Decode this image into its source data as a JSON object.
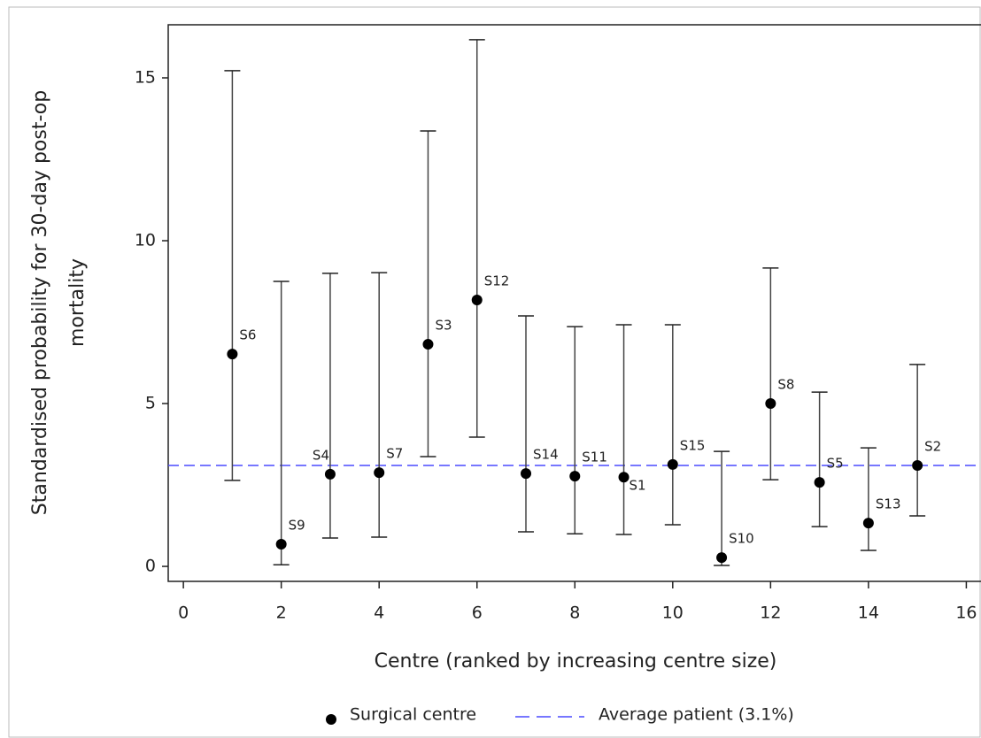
{
  "chart_data": {
    "type": "errorbar",
    "xlabel": "Centre (ranked by increasing centre size)",
    "ylabel": [
      "Standardised probability for 30-day post-op",
      "mortality"
    ],
    "xlim": [
      -0.31,
      16.3
    ],
    "ylim": [
      -0.46,
      16.63
    ],
    "xticks": [
      0,
      2,
      4,
      6,
      8,
      10,
      12,
      14,
      16
    ],
    "yticks": [
      0,
      5,
      10,
      15
    ],
    "series": [
      {
        "name": "Surgical centre",
        "color": "#000000",
        "x": [
          1,
          2,
          3,
          4,
          5,
          6,
          7,
          8,
          9,
          10,
          11,
          12,
          13,
          14,
          15
        ],
        "values": [
          6.52,
          0.68,
          2.83,
          2.88,
          6.82,
          8.18,
          2.85,
          2.77,
          2.74,
          3.13,
          0.27,
          5.0,
          2.58,
          1.33,
          3.1
        ],
        "lower": [
          2.64,
          0.05,
          0.87,
          0.9,
          3.37,
          3.97,
          1.06,
          1.0,
          0.98,
          1.28,
          0.03,
          2.66,
          1.22,
          0.49,
          1.55
        ],
        "upper": [
          15.22,
          8.75,
          9.0,
          9.02,
          13.37,
          16.17,
          7.69,
          7.36,
          7.42,
          7.42,
          3.53,
          9.16,
          5.35,
          3.64,
          6.2
        ],
        "point_labels": [
          "S6",
          "S9",
          "S4",
          "S7",
          "S3",
          "S12",
          "S14",
          "S11",
          "S1",
          "S15",
          "S10",
          "S8",
          "S5",
          "S13",
          "S2"
        ]
      }
    ],
    "reference_line": {
      "name": "Average patient (3.1%)",
      "value": 3.1,
      "color": "#4a4aff",
      "style": "dashed"
    }
  }
}
